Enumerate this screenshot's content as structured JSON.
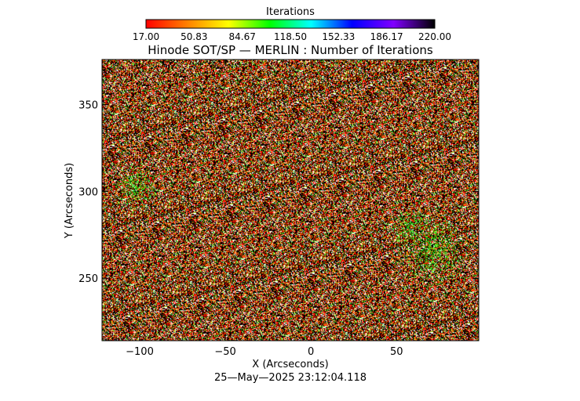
{
  "chart_data": {
    "type": "heatmap",
    "title": "Hinode SOT/SP — MERLIN : Number of Iterations",
    "xlabel": "X (Arcseconds)",
    "ylabel": "Y (Arcseconds)",
    "timestamp": "25—May—2025 23:12:04.118",
    "xlim": [
      -122,
      98
    ],
    "ylim": [
      214,
      376
    ],
    "x_ticks": [
      -100,
      -50,
      0,
      50
    ],
    "y_ticks": [
      250,
      300,
      350
    ],
    "x_tick_labels": [
      "−100",
      "−50",
      "0",
      "50"
    ],
    "y_tick_labels": [
      "250",
      "300",
      "350"
    ],
    "colorbar": {
      "label": "Iterations",
      "min": 17.0,
      "max": 220.0,
      "tick_labels": [
        "17.00",
        "50.83",
        "84.67",
        "118.50",
        "152.33",
        "186.17",
        "220.00"
      ],
      "colors": [
        "#ff0000",
        "#ff8000",
        "#ffff00",
        "#00ff00",
        "#00ffff",
        "#0000ff",
        "#8000ff",
        "#000000"
      ]
    },
    "value_mix": {
      "black_fraction": 0.38,
      "red_fraction": 0.22,
      "orange_fraction": 0.07,
      "white_fraction": 0.14,
      "green_fraction": 0.08,
      "yellow_fraction": 0.06
    }
  }
}
